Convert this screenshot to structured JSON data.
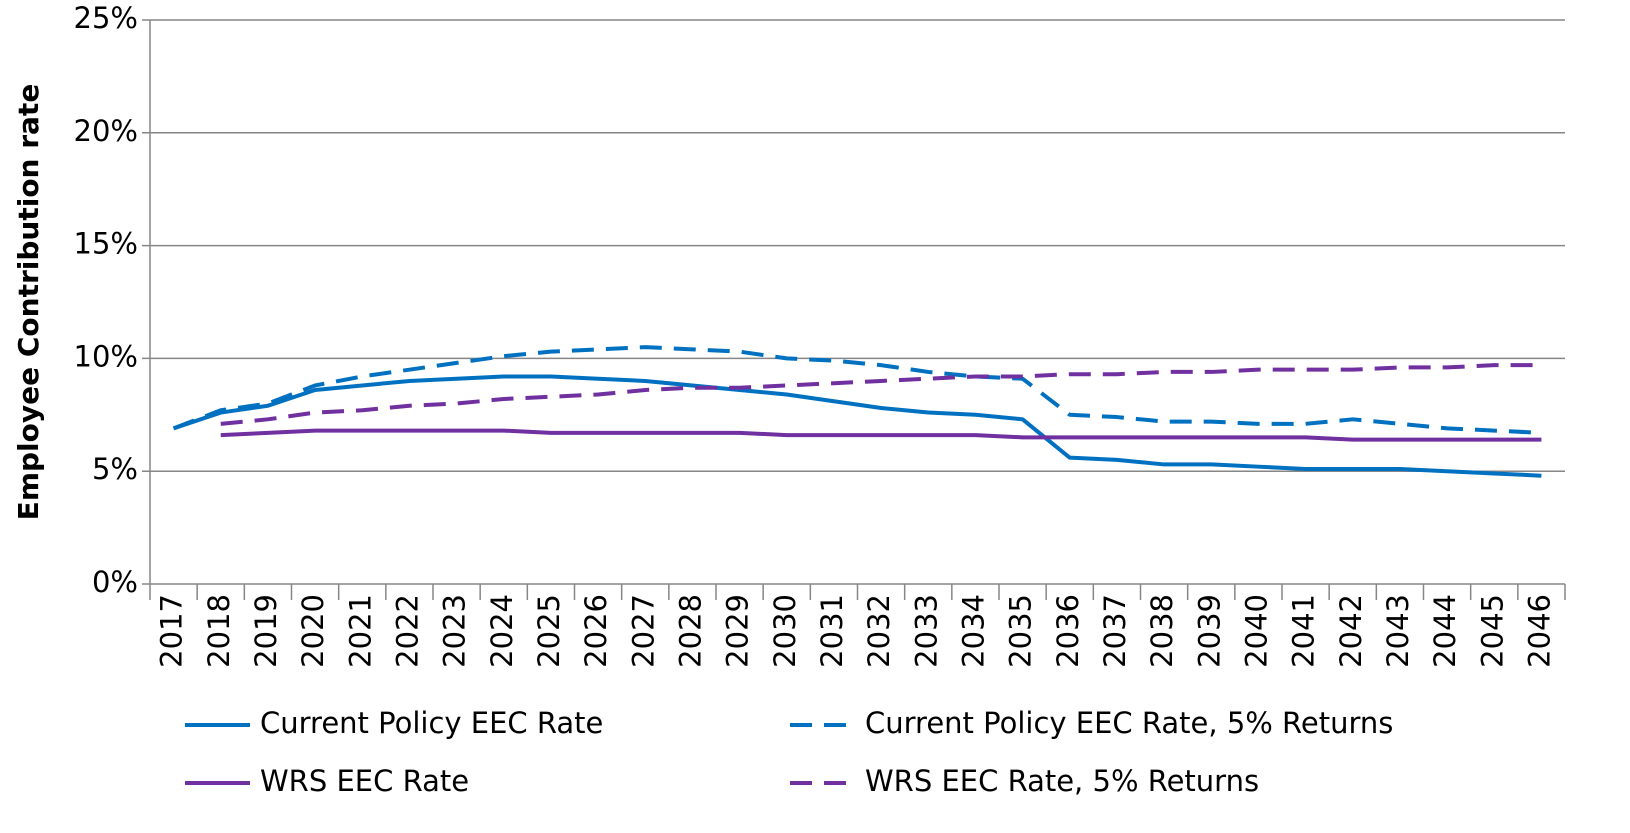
{
  "chart_data": {
    "type": "line",
    "y_label": "Employee Contribution rate",
    "categories": [
      "2017",
      "2018",
      "2019",
      "2020",
      "2021",
      "2022",
      "2023",
      "2024",
      "2025",
      "2026",
      "2027",
      "2028",
      "2029",
      "2030",
      "2031",
      "2032",
      "2033",
      "2034",
      "2035",
      "2036",
      "2037",
      "2038",
      "2039",
      "2040",
      "2041",
      "2042",
      "2043",
      "2044",
      "2045",
      "2046"
    ],
    "ylim": [
      0,
      25
    ],
    "yticks": [
      {
        "value": 0,
        "label": "0%"
      },
      {
        "value": 5,
        "label": "5%"
      },
      {
        "value": 10,
        "label": "10%"
      },
      {
        "value": 15,
        "label": "15%"
      },
      {
        "value": 20,
        "label": "20%"
      },
      {
        "value": 25,
        "label": "25%"
      }
    ],
    "grid": true,
    "legend": "bottom",
    "series": [
      {
        "name": "Current Policy EEC Rate",
        "color": "#0070c0",
        "dashed": false,
        "values": [
          6.9,
          7.6,
          7.9,
          8.6,
          8.8,
          9.0,
          9.1,
          9.2,
          9.2,
          9.1,
          9.0,
          8.8,
          8.6,
          8.4,
          8.1,
          7.8,
          7.6,
          7.5,
          7.3,
          5.6,
          5.5,
          5.3,
          5.3,
          5.2,
          5.1,
          5.1,
          5.1,
          5.0,
          4.9,
          4.8
        ]
      },
      {
        "name": "Current Policy EEC Rate, 5% Returns",
        "color": "#0070c0",
        "dashed": true,
        "values": [
          6.9,
          7.7,
          8.0,
          8.8,
          9.2,
          9.5,
          9.8,
          10.1,
          10.3,
          10.4,
          10.5,
          10.4,
          10.3,
          10.0,
          9.9,
          9.7,
          9.4,
          9.2,
          9.1,
          7.5,
          7.4,
          7.2,
          7.2,
          7.1,
          7.1,
          7.3,
          7.1,
          6.9,
          6.8,
          6.7
        ]
      },
      {
        "name": "WRS EEC Rate",
        "color": "#7030a0",
        "dashed": false,
        "values": [
          null,
          6.6,
          6.7,
          6.8,
          6.8,
          6.8,
          6.8,
          6.8,
          6.7,
          6.7,
          6.7,
          6.7,
          6.7,
          6.6,
          6.6,
          6.6,
          6.6,
          6.6,
          6.5,
          6.5,
          6.5,
          6.5,
          6.5,
          6.5,
          6.5,
          6.4,
          6.4,
          6.4,
          6.4,
          6.4
        ]
      },
      {
        "name": "WRS EEC Rate, 5% Returns",
        "color": "#7030a0",
        "dashed": true,
        "values": [
          null,
          7.1,
          7.3,
          7.6,
          7.7,
          7.9,
          8.0,
          8.2,
          8.3,
          8.4,
          8.6,
          8.7,
          8.7,
          8.8,
          8.9,
          9.0,
          9.1,
          9.2,
          9.2,
          9.3,
          9.3,
          9.4,
          9.4,
          9.5,
          9.5,
          9.5,
          9.6,
          9.6,
          9.7,
          9.7
        ]
      }
    ]
  }
}
